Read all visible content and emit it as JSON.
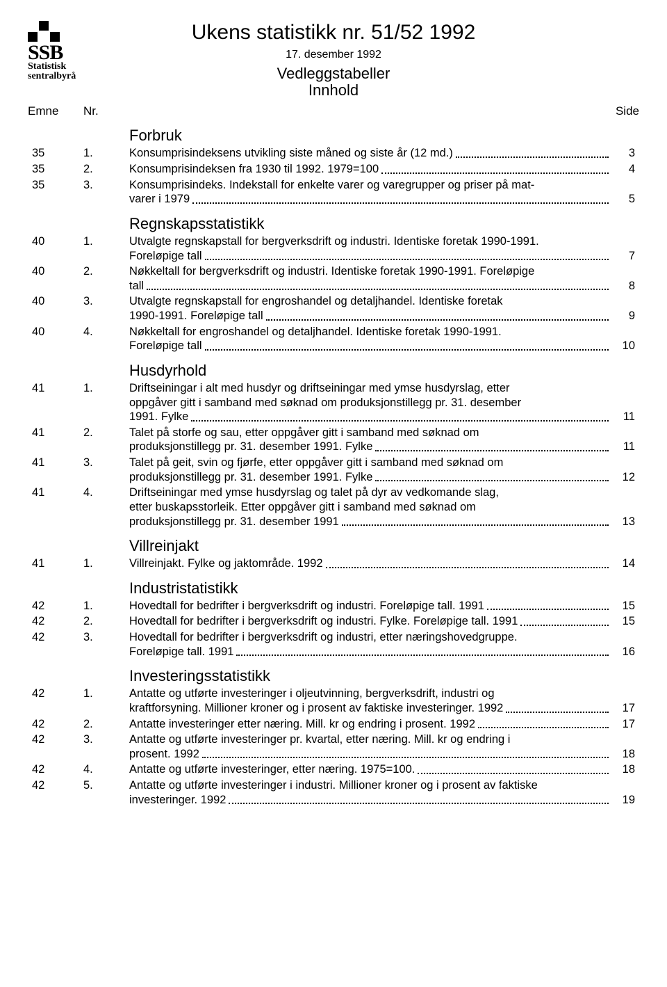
{
  "logo": {
    "text": "SSB",
    "sub1": "Statistisk",
    "sub2": "sentralbyrå"
  },
  "title": "Ukens statistikk nr. 51/52 1992",
  "date": "17. desember 1992",
  "subtitle1": "Vedleggstabeller",
  "subtitle2": "Innhold",
  "cols": {
    "emne": "Emne",
    "nr": "Nr.",
    "side": "Side"
  },
  "sections": [
    {
      "title": "Forbruk",
      "entries": [
        {
          "emne": "35",
          "nr": "1.",
          "desc": "Konsumprisindeksens utvikling siste måned og siste år (12 md.)",
          "page": "3"
        },
        {
          "emne": "35",
          "nr": "2.",
          "desc": "Konsumprisindeksen fra 1930 til 1992. 1979=100",
          "page": "4"
        },
        {
          "emne": "35",
          "nr": "3.",
          "desc": "Konsumprisindeks. Indekstall for enkelte varer og varegrupper og priser på mat-\nvarer i 1979",
          "page": "5"
        }
      ]
    },
    {
      "title": "Regnskapsstatistikk",
      "entries": [
        {
          "emne": "40",
          "nr": "1.",
          "desc": "Utvalgte regnskapstall for bergverksdrift og industri. Identiske foretak 1990-1991.\nForeløpige tall",
          "page": "7"
        },
        {
          "emne": "40",
          "nr": "2.",
          "desc": "Nøkkeltall for bergverksdrift og industri. Identiske foretak 1990-1991. Foreløpige\ntall",
          "page": "8"
        },
        {
          "emne": "40",
          "nr": "3.",
          "desc": "Utvalgte regnskapstall for engroshandel og detaljhandel. Identiske foretak\n1990-1991. Foreløpige tall",
          "page": "9"
        },
        {
          "emne": "40",
          "nr": "4.",
          "desc": "Nøkkeltall for engroshandel og detaljhandel. Identiske foretak 1990-1991.\nForeløpige tall",
          "page": "10"
        }
      ]
    },
    {
      "title": "Husdyrhold",
      "entries": [
        {
          "emne": "41",
          "nr": "1.",
          "desc": "Driftseiningar i alt med husdyr og driftseiningar med ymse husdyrslag, etter\noppgåver gitt i samband med søknad om produksjonstillegg pr. 31. desember\n1991. Fylke",
          "page": "11"
        },
        {
          "emne": "41",
          "nr": "2.",
          "desc": "Talet på storfe og sau, etter oppgåver gitt i samband med søknad om\nproduksjonstillegg pr. 31. desember 1991. Fylke",
          "page": "11"
        },
        {
          "emne": "41",
          "nr": "3.",
          "desc": "Talet på geit, svin og fjørfe, etter oppgåver gitt i samband med søknad om\nproduksjonstillegg pr. 31. desember 1991. Fylke",
          "page": "12"
        },
        {
          "emne": "41",
          "nr": "4.",
          "desc": "Driftseiningar med ymse husdyrslag og talet på dyr av vedkomande slag,\netter buskapsstorleik. Etter oppgåver gitt i samband med søknad om\nproduksjonstillegg pr. 31. desember 1991",
          "page": "13"
        }
      ]
    },
    {
      "title": "Villreinjakt",
      "entries": [
        {
          "emne": "41",
          "nr": "1.",
          "desc": "Villreinjakt. Fylke og jaktområde. 1992",
          "page": "14"
        }
      ]
    },
    {
      "title": "Industristatistikk",
      "entries": [
        {
          "emne": "42",
          "nr": "1.",
          "desc": "Hovedtall for bedrifter i bergverksdrift og industri. Foreløpige tall. 1991",
          "page": "15"
        },
        {
          "emne": "42",
          "nr": "2.",
          "desc": "Hovedtall for bedrifter i bergverksdrift og industri. Fylke. Foreløpige tall. 1991",
          "page": "15"
        },
        {
          "emne": "42",
          "nr": "3.",
          "desc": "Hovedtall for bedrifter i bergverksdrift og industri, etter næringshovedgruppe.\nForeløpige tall. 1991",
          "page": "16"
        }
      ]
    },
    {
      "title": "Investeringsstatistikk",
      "entries": [
        {
          "emne": "42",
          "nr": "1.",
          "desc": "Antatte og utførte investeringer i oljeutvinning, bergverksdrift, industri og\nkraftforsyning. Millioner kroner og i prosent av faktiske investeringer. 1992",
          "page": "17"
        },
        {
          "emne": "42",
          "nr": "2.",
          "desc": "Antatte investeringer etter næring. Mill. kr og endring i prosent. 1992",
          "page": "17"
        },
        {
          "emne": "42",
          "nr": "3.",
          "desc": "Antatte og utførte investeringer pr. kvartal, etter næring. Mill. kr og endring i\nprosent. 1992",
          "page": "18"
        },
        {
          "emne": "42",
          "nr": "4.",
          "desc": "Antatte og utførte investeringer, etter næring. 1975=100.",
          "page": "18"
        },
        {
          "emne": "42",
          "nr": "5.",
          "desc": "Antatte og utførte investeringer i industri. Millioner kroner og i prosent av faktiske\ninvesteringer. 1992",
          "page": "19"
        }
      ]
    }
  ]
}
